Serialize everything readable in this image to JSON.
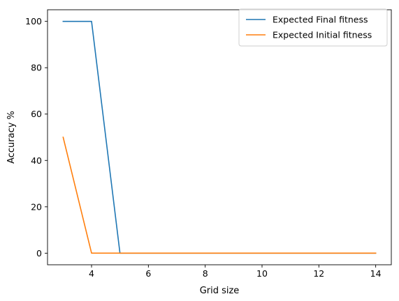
{
  "chart_data": {
    "type": "line",
    "title": "",
    "xlabel": "Grid size",
    "ylabel": "Accuracy %",
    "xlim": [
      2.45,
      14.55
    ],
    "ylim": [
      -5,
      105
    ],
    "xticks": [
      4,
      6,
      8,
      10,
      12,
      14
    ],
    "yticks": [
      0,
      20,
      40,
      60,
      80,
      100
    ],
    "grid": false,
    "legend_position": "upper right",
    "x": [
      3,
      4,
      5,
      6,
      7,
      8,
      9,
      10,
      11,
      12,
      13,
      14
    ],
    "series": [
      {
        "name": "Expected Final fitness",
        "color": "#1f77b4",
        "values": [
          100,
          100,
          0,
          0,
          0,
          0,
          0,
          0,
          0,
          0,
          0,
          0
        ]
      },
      {
        "name": "Expected Initial fitness",
        "color": "#ff7f0e",
        "values": [
          50,
          0,
          0,
          0,
          0,
          0,
          0,
          0,
          0,
          0,
          0,
          0
        ]
      }
    ]
  }
}
